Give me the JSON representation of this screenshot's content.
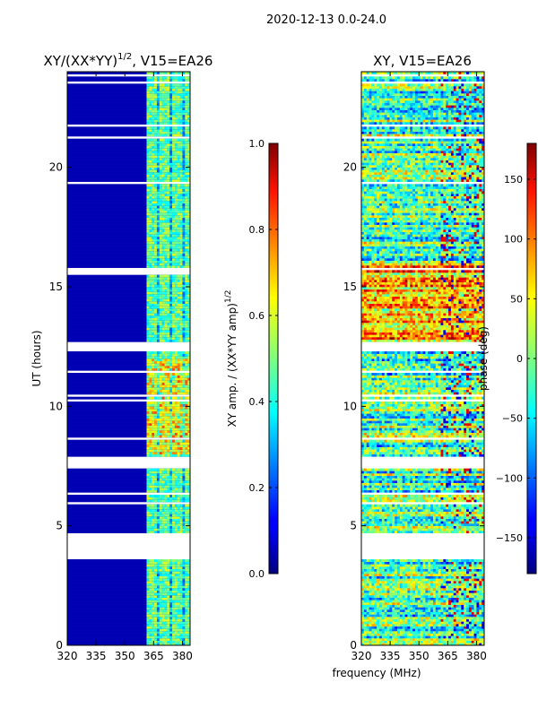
{
  "figure": {
    "suptitle": "2020-12-13 0.0-24.0",
    "shared_xlabel": "frequency (MHz)"
  },
  "chart_data": [
    {
      "type": "heatmap",
      "title": "XY/(XX*YY)^1/2, V15=EA26",
      "title_main": "XY/(XX*YY)",
      "title_exp": "1/2",
      "title_tail": ", V15=EA26",
      "xlabel": "frequency (MHz)",
      "ylabel": "UT (hours)",
      "xlim": [
        320,
        384
      ],
      "ylim": [
        0,
        24
      ],
      "xticks": [
        320,
        335,
        350,
        365,
        380
      ],
      "yticks": [
        0,
        5,
        10,
        15,
        20
      ],
      "colorbar": {
        "label": "XY amp. / (XX*YY amp)^1/2",
        "label_main": "XY amp. / (XX*YY amp)",
        "label_exp": "1/2",
        "range": [
          0.0,
          1.0
        ],
        "ticks": [
          0.0,
          0.2,
          0.4,
          0.6,
          0.8,
          1.0
        ],
        "tick_labels": [
          "0.0",
          "0.2",
          "0.4",
          "0.6",
          "0.8",
          "1.0"
        ],
        "colormap": "jet"
      },
      "flagged_hours": [
        [
          3.65,
          4.7
        ],
        [
          7.55,
          7.85
        ],
        [
          12.45,
          12.7
        ],
        [
          15.55,
          15.7
        ]
      ],
      "active_band_mhz": [
        361,
        384
      ],
      "background_level": 0.05
    },
    {
      "type": "heatmap",
      "title": "XY, V15=EA26",
      "xlabel": "frequency (MHz)",
      "ylabel": "",
      "xlim": [
        320,
        384
      ],
      "ylim": [
        0,
        24
      ],
      "xticks": [
        320,
        335,
        350,
        365,
        380
      ],
      "yticks": [
        0,
        5,
        10,
        15,
        20
      ],
      "colorbar": {
        "label": "phase (deg)",
        "range": [
          -180,
          180
        ],
        "ticks": [
          -150,
          -100,
          -50,
          0,
          50,
          100,
          150
        ],
        "tick_labels": [
          "−150",
          "−100",
          "−50",
          "0",
          "50",
          "100",
          "150"
        ],
        "colormap": "jet"
      },
      "flagged_hours": [
        [
          3.65,
          4.7
        ],
        [
          7.55,
          7.85
        ],
        [
          12.45,
          12.7
        ]
      ]
    }
  ]
}
